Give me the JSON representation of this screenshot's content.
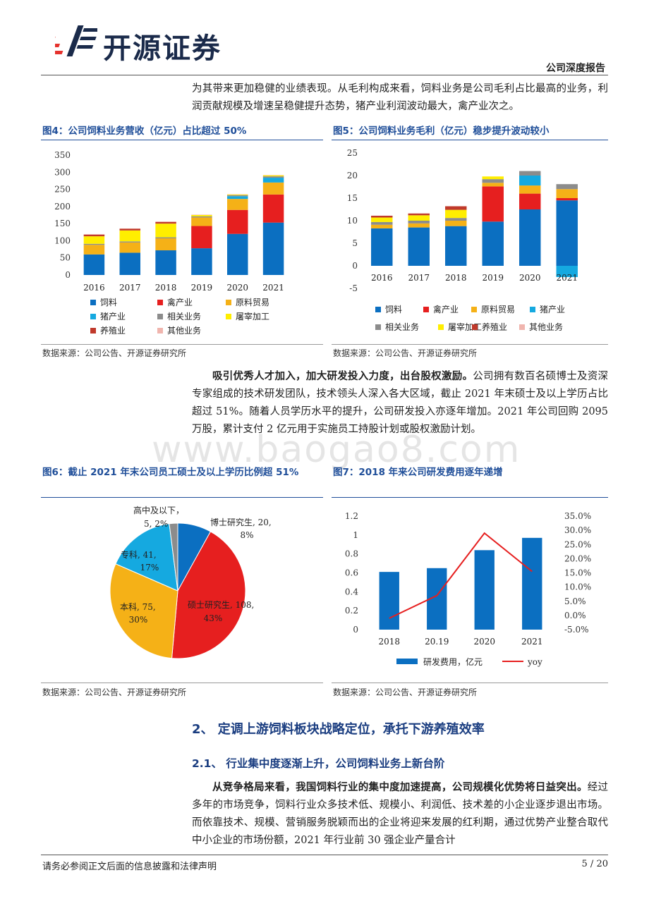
{
  "header": {
    "brand": "开源证券",
    "report_type": "公司深度报告"
  },
  "intro": {
    "text": "为其带来更加稳健的业绩表现。从毛利构成来看，饲料业务是公司毛利占比最高的业务，利润贡献规模及增速呈稳健提升态势，猪产业利润波动最大，禽产业次之。"
  },
  "fig4": {
    "title": "图4：公司饲料业务营收（亿元）占比超过 50%",
    "source": "数据来源：公司公告、开源证券研究所"
  },
  "fig5": {
    "title": "图5：公司饲料业务毛利（亿元）稳步提升波动较小",
    "source": "数据来源：公司公告、开源证券研究所"
  },
  "para2": {
    "bold": "吸引优秀人才加入，加大研发投入力度，出台股权激励。",
    "text": "公司拥有数百名硕博士及资深专家组成的技术研发团队，技术领头人深入各大区域，截止 2021 年末硕士及以上学历占比超过 51%。随着人员学历水平的提升，公司研发投入亦逐年增加。2021 年公司回购 2095 万股，累计支付 2 亿元用于实施员工持股计划或股权激励计划。"
  },
  "watermark": "www.baogao8.com",
  "fig6": {
    "title": "图6：截止 2021 年末公司员工硕士及以上学历比例超 51%",
    "source": "数据来源：公司公告、开源证券研究所"
  },
  "fig7": {
    "title": "图7：2018 年来公司研发费用逐年递增",
    "source": "数据来源：公司公告、开源证券研究所"
  },
  "section2": {
    "title": "2、 定调上游饲料板块战略定位，承托下游养殖效率"
  },
  "section21": {
    "title": "2.1、 行业集中度逐渐上升，公司饲料业务上新台阶"
  },
  "para3": {
    "bold": "从竞争格局来看，我国饲料行业的集中度加速提高，公司规模化优势将日益突出。",
    "text": "经过多年的市场竞争，饲料行业众多技术低、规模小、利润低、技术差的小企业逐步退出市场。而依靠技术、规模、营销服务脱颖而出的企业将迎来发展的红利期，通过优势产业整合取代中小企业的市场份额，2021 年行业前 30 强企业产量合计"
  },
  "footer": {
    "disclaimer": "请务必参阅正文后面的信息披露和法律声明",
    "page": "5 / 20"
  },
  "chart_data": [
    {
      "type": "bar",
      "stacked": true,
      "title": "公司饲料业务营收（亿元）占比超过 50%",
      "categories": [
        "2016",
        "2017",
        "2018",
        "2019",
        "2020",
        "2021"
      ],
      "ylim": [
        0,
        350
      ],
      "yticks": [
        0,
        50,
        100,
        150,
        200,
        250,
        300,
        350
      ],
      "series": [
        {
          "name": "饲料",
          "color": "#0b6fc1",
          "values": [
            60,
            65,
            72,
            78,
            120,
            153
          ]
        },
        {
          "name": "禽产业",
          "color": "#e61f1f",
          "values": [
            0,
            0,
            0,
            65,
            70,
            82
          ]
        },
        {
          "name": "原料贸易",
          "color": "#f5b117",
          "values": [
            28,
            30,
            35,
            25,
            32,
            35
          ]
        },
        {
          "name": "猪产业",
          "color": "#15a9e0",
          "values": [
            0,
            0,
            0,
            0,
            8,
            14
          ]
        },
        {
          "name": "相关业务",
          "color": "#8c8c8c",
          "values": [
            3,
            3,
            3,
            3,
            3,
            4
          ]
        },
        {
          "name": "屠宰加工",
          "color": "#ffee00",
          "values": [
            22,
            32,
            40,
            4,
            2,
            3
          ]
        },
        {
          "name": "养殖业",
          "color": "#c0392b",
          "values": [
            5,
            5,
            5,
            0,
            0,
            0
          ]
        },
        {
          "name": "其他业务",
          "color": "#f0b5ae",
          "values": [
            1,
            1,
            1,
            1,
            1,
            1
          ]
        }
      ]
    },
    {
      "type": "bar",
      "stacked": true,
      "title": "公司饲料业务毛利（亿元）稳步提升波动较小",
      "categories": [
        "2016",
        "2017",
        "2018",
        "2019",
        "2020",
        "2021"
      ],
      "ylim": [
        -5,
        25
      ],
      "yticks": [
        -5,
        0,
        5,
        10,
        15,
        20,
        25
      ],
      "series": [
        {
          "name": "饲料",
          "color": "#0b6fc1",
          "values": [
            8.3,
            8.5,
            8.8,
            9.8,
            12.5,
            14.5
          ]
        },
        {
          "name": "禽产业",
          "color": "#e61f1f",
          "values": [
            0,
            0,
            0,
            7.8,
            3.5,
            0.5
          ]
        },
        {
          "name": "原料贸易",
          "color": "#f5b117",
          "values": [
            0.8,
            0.9,
            1.2,
            0.8,
            1.8,
            2.0
          ]
        },
        {
          "name": "猪产业",
          "color": "#15a9e0",
          "values": [
            0,
            0,
            0,
            0,
            2.2,
            -2.5
          ]
        },
        {
          "name": "相关业务",
          "color": "#8c8c8c",
          "values": [
            0.6,
            0.6,
            0.6,
            0.8,
            1.0,
            1.1
          ]
        },
        {
          "name": "屠宰加工",
          "color": "#ffee00",
          "values": [
            1.0,
            1.2,
            1.8,
            0.6,
            0,
            0
          ]
        },
        {
          "name": "养殖业",
          "color": "#c0392b",
          "values": [
            0.4,
            0.4,
            0.8,
            0,
            0,
            0
          ]
        },
        {
          "name": "其他业务",
          "color": "#f0b5ae",
          "values": [
            0,
            0,
            0,
            0,
            0,
            0
          ]
        }
      ]
    },
    {
      "type": "pie",
      "title": "截止 2021 年末公司员工硕士及以上学历比例超 51%",
      "slices": [
        {
          "name": "博士研究生",
          "value": 20,
          "pct": "8%",
          "label": "博士研究生, 20, 8%",
          "color": "#0b6fc1"
        },
        {
          "name": "硕士研究生",
          "value": 108,
          "pct": "43%",
          "label": "硕士研究生, 108, 43%",
          "color": "#e61f1f"
        },
        {
          "name": "本科",
          "value": 75,
          "pct": "30%",
          "label": "本科, 75, 30%",
          "color": "#f5b117"
        },
        {
          "name": "专科",
          "value": 41,
          "pct": "17%",
          "label": "专科, 41, 17%",
          "color": "#15a9e0"
        },
        {
          "name": "高中及以下",
          "value": 5,
          "pct": "2%",
          "label": "高中及以下, 5, 2%",
          "color": "#8c8c8c"
        }
      ]
    },
    {
      "type": "bar+line",
      "title": "2018 年来公司研发费用逐年递增",
      "categories": [
        "2018",
        "20.19",
        "2020",
        "2021"
      ],
      "bar_series": {
        "name": "研发费用，亿元",
        "color": "#0b6fc1",
        "values": [
          0.61,
          0.65,
          0.84,
          0.97
        ]
      },
      "line_series": {
        "name": "yoy",
        "color": "#e61f1f",
        "values": [
          -0.01,
          0.07,
          0.29,
          0.155
        ]
      },
      "ylim_left": [
        0,
        1.2
      ],
      "yticks_left": [
        "0",
        "0.2",
        "0.4",
        "0.6",
        "0.8",
        "1",
        "1.2"
      ],
      "ylim_right": [
        -0.05,
        0.35
      ],
      "yticks_right": [
        "-5.0%",
        "0.0%",
        "5.0%",
        "10.0%",
        "15.0%",
        "20.0%",
        "25.0%",
        "30.0%",
        "35.0%"
      ]
    }
  ]
}
